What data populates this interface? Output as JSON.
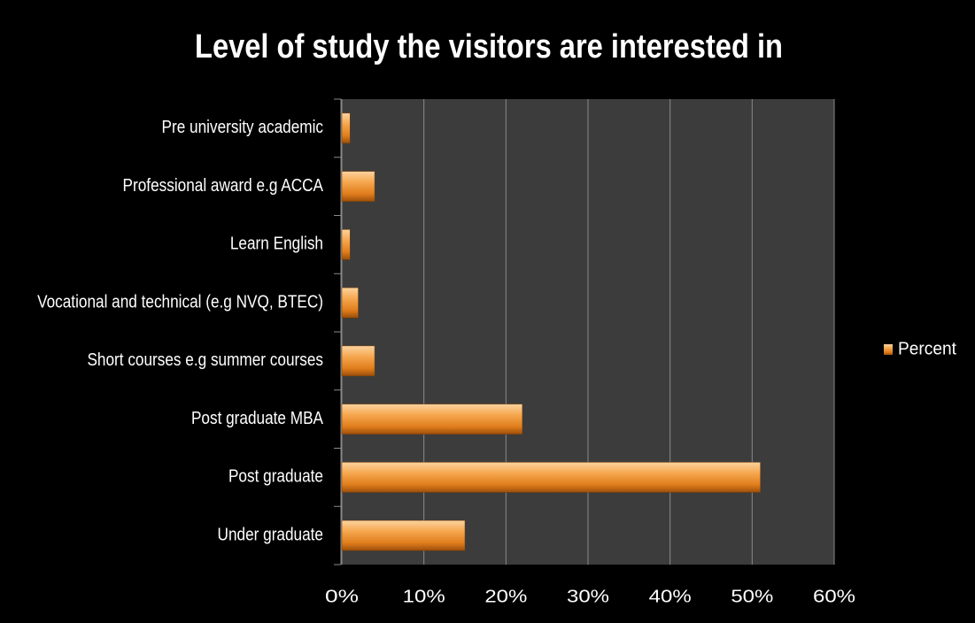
{
  "chart_data": {
    "type": "bar",
    "orientation": "horizontal",
    "title": "Level of study the visitors are interested in",
    "categories": [
      "Pre university academic",
      "Professional award e.g  ACCA",
      "Learn English",
      "Vocational and technical (e.g NVQ, BTEC)",
      "Short courses e.g summer courses",
      "Post graduate MBA",
      "Post graduate",
      "Under graduate"
    ],
    "series": [
      {
        "name": "Percent",
        "color": "#f0922e",
        "values": [
          1,
          4,
          1,
          2,
          4,
          22,
          51,
          15
        ]
      }
    ],
    "xlim": [
      0,
      60
    ],
    "xticks": [
      {
        "value": 0,
        "label": "0%"
      },
      {
        "value": 10,
        "label": "10%"
      },
      {
        "value": 20,
        "label": "20%"
      },
      {
        "value": 30,
        "label": "30%"
      },
      {
        "value": 40,
        "label": "40%"
      },
      {
        "value": 50,
        "label": "50%"
      },
      {
        "value": 60,
        "label": "60%"
      }
    ],
    "grid": true,
    "legend": "right"
  }
}
